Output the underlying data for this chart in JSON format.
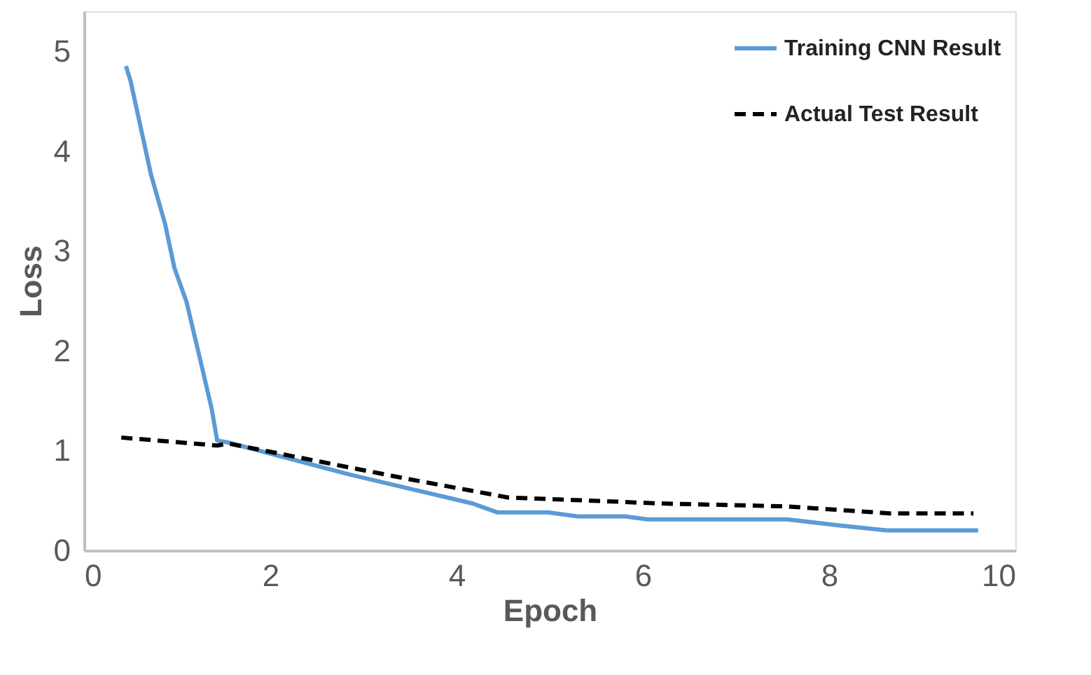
{
  "chart_data": {
    "type": "line",
    "xlabel": "Epoch",
    "ylabel": "Loss",
    "xlim": [
      0,
      10
    ],
    "ylim": [
      0,
      5.4
    ],
    "xticks": [
      0,
      2,
      4,
      6,
      8,
      10
    ],
    "yticks": [
      0,
      1,
      2,
      3,
      4,
      5
    ],
    "grid": false,
    "legend": "top right",
    "marker": "none",
    "series": [
      {
        "name": "Training CNN Result",
        "color": "#5b9bd5",
        "line_style": "solid",
        "x": [
          0.45,
          0.5,
          0.72,
          0.87,
          0.97,
          1.1,
          1.25,
          1.37,
          1.43,
          1.55,
          2.85,
          4.17,
          4.44,
          4.98,
          5.3,
          5.81,
          6.05,
          7.55,
          8.1,
          8.62,
          9.6
        ],
        "values": [
          4.85,
          4.7,
          3.76,
          3.27,
          2.83,
          2.49,
          1.9,
          1.42,
          1.1,
          1.08,
          0.76,
          0.47,
          0.38,
          0.38,
          0.34,
          0.34,
          0.31,
          0.31,
          0.25,
          0.2,
          0.2
        ]
      },
      {
        "name": "Actual Test Result",
        "color": "#000000",
        "line_style": "dashed",
        "x": [
          0.4,
          1.43,
          1.55,
          3.45,
          4.55,
          6.19,
          7.55,
          8.65,
          9.55
        ],
        "values": [
          1.13,
          1.05,
          1.07,
          0.72,
          0.53,
          0.47,
          0.44,
          0.37,
          0.37
        ]
      }
    ]
  }
}
